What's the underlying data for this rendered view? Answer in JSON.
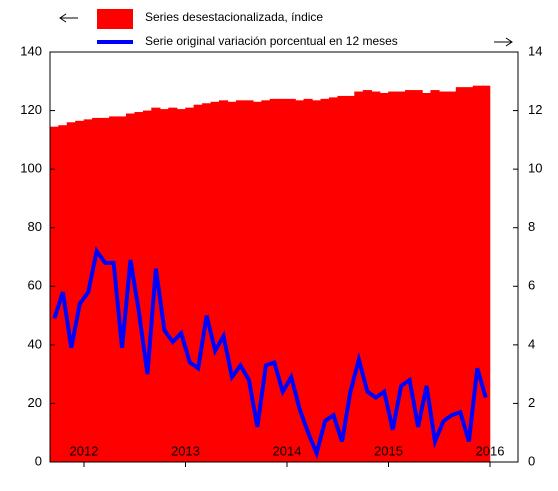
{
  "chart_data": {
    "type": "bar",
    "x": [
      2011.708,
      2011.792,
      2011.875,
      2011.958,
      2012.042,
      2012.125,
      2012.208,
      2012.292,
      2012.375,
      2012.458,
      2012.542,
      2012.625,
      2012.708,
      2012.792,
      2012.875,
      2012.958,
      2013.042,
      2013.125,
      2013.208,
      2013.292,
      2013.375,
      2013.458,
      2013.542,
      2013.625,
      2013.708,
      2013.792,
      2013.875,
      2013.958,
      2014.042,
      2014.125,
      2014.208,
      2014.292,
      2014.375,
      2014.458,
      2014.542,
      2014.625,
      2014.708,
      2014.792,
      2014.875,
      2014.958,
      2015.042,
      2015.125,
      2015.208,
      2015.292,
      2015.375,
      2015.458,
      2015.542,
      2015.625,
      2015.708,
      2015.792,
      2015.875,
      2015.958
    ],
    "series": [
      {
        "name": "Series desestacionalizada, índice",
        "type": "bar",
        "color": "#ff0000",
        "values": [
          114.5,
          115,
          116,
          116.5,
          117,
          117.5,
          117.5,
          118,
          118,
          119,
          119.5,
          120,
          121,
          120.5,
          121,
          120.5,
          121,
          122,
          122.5,
          123,
          123.5,
          123,
          123.5,
          123.5,
          123,
          123.5,
          124,
          124,
          124,
          123.5,
          124,
          123.5,
          124,
          124.5,
          125,
          125,
          126.5,
          127,
          126.5,
          126,
          126.5,
          126.5,
          127,
          127,
          126,
          127,
          126.5,
          126.5,
          128,
          128,
          128.5,
          128.5
        ]
      },
      {
        "name": "Serie original variación porcentual en 12 meses",
        "type": "line",
        "axis": "y2",
        "color": "#0000ff",
        "values": [
          4.9,
          5.8,
          3.9,
          5.4,
          5.8,
          7.2,
          6.8,
          6.8,
          3.9,
          6.9,
          5.1,
          3.0,
          6.6,
          4.5,
          4.1,
          4.4,
          3.4,
          3.2,
          5.0,
          3.8,
          4.3,
          2.9,
          3.3,
          2.8,
          1.2,
          3.3,
          3.4,
          2.4,
          2.9,
          1.8,
          1.0,
          0.3,
          1.4,
          1.6,
          0.7,
          2.4,
          3.5,
          2.4,
          2.2,
          2.4,
          1.1,
          2.6,
          2.8,
          1.2,
          2.6,
          0.7,
          1.4,
          1.6,
          1.7,
          0.7,
          3.2,
          2.2
        ]
      }
    ],
    "xlim": [
      2011.665,
      2016.276
    ],
    "xticks": [
      2012,
      2013,
      2014,
      2015,
      2016
    ],
    "ylim": [
      0,
      140
    ],
    "yticks": [
      0,
      20,
      40,
      60,
      80,
      100,
      120,
      140
    ],
    "y2lim": [
      0,
      14
    ],
    "y2ticks": [
      0,
      2,
      4,
      6,
      8,
      10,
      12,
      14
    ],
    "grid": false
  }
}
